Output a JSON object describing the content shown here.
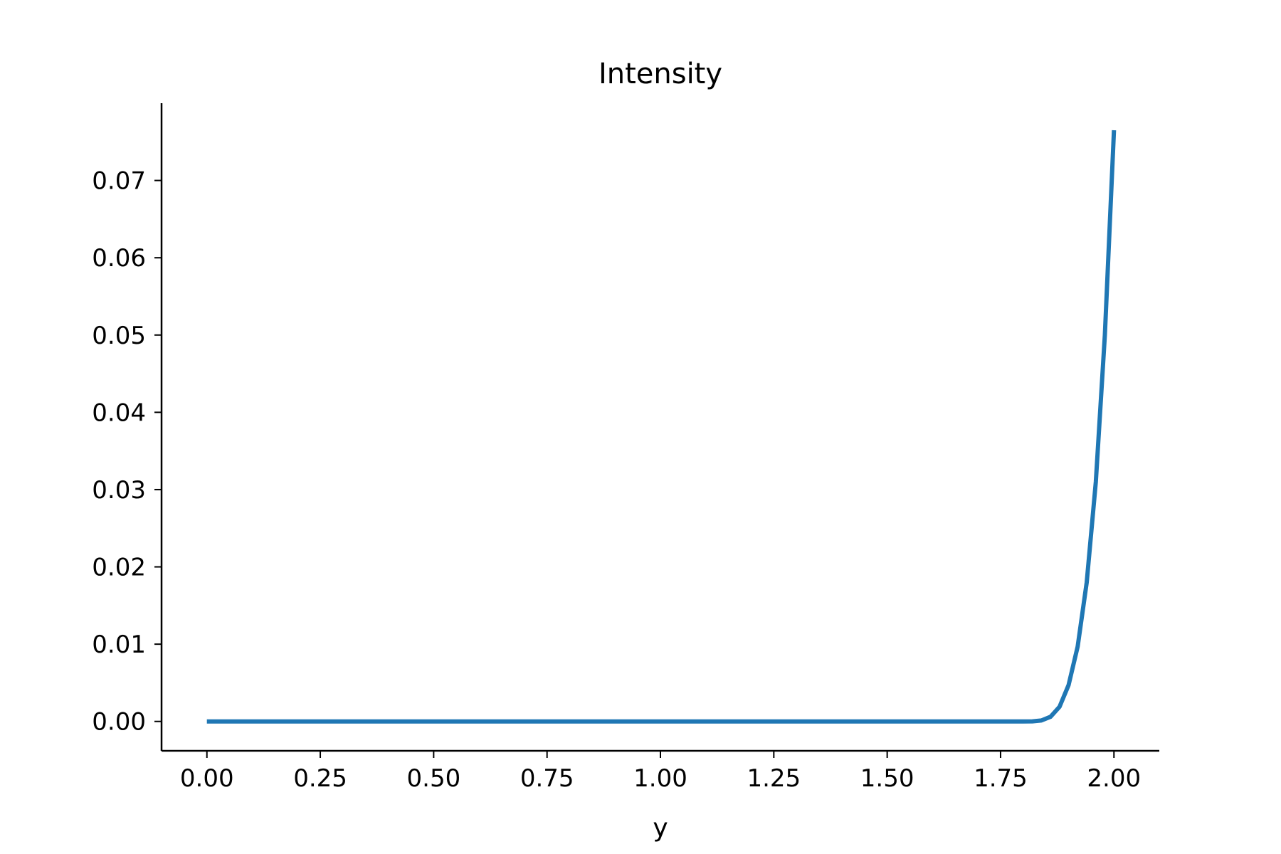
{
  "chart_data": {
    "type": "line",
    "title": "Intensity",
    "xlabel": "y",
    "ylabel": "",
    "xlim": [
      -0.1,
      2.1
    ],
    "ylim": [
      -0.0038,
      0.08
    ],
    "x_ticks": [
      0.0,
      0.25,
      0.5,
      0.75,
      1.0,
      1.25,
      1.5,
      1.75,
      2.0
    ],
    "x_tick_labels": [
      "0.00",
      "0.25",
      "0.50",
      "0.75",
      "1.00",
      "1.25",
      "1.50",
      "1.75",
      "2.00"
    ],
    "y_ticks": [
      0.0,
      0.01,
      0.02,
      0.03,
      0.04,
      0.05,
      0.06,
      0.07
    ],
    "y_tick_labels": [
      "0.00",
      "0.01",
      "0.02",
      "0.03",
      "0.04",
      "0.05",
      "0.06",
      "0.07"
    ],
    "grid": false,
    "color": "#1f77b4",
    "series": [
      {
        "x": [
          0.0,
          0.25,
          0.5,
          0.75,
          1.0,
          1.25,
          1.5,
          1.75,
          1.8,
          1.82,
          1.84,
          1.86,
          1.88,
          1.9,
          1.92,
          1.94,
          1.96,
          1.98,
          2.0
        ],
        "values": [
          0.0,
          0.0,
          0.0,
          0.0,
          0.0,
          0.0,
          0.0,
          0.0,
          0.0,
          1e-05,
          0.00012,
          0.0006,
          0.0019,
          0.0047,
          0.0097,
          0.018,
          0.031,
          0.05,
          0.0765
        ]
      }
    ]
  }
}
